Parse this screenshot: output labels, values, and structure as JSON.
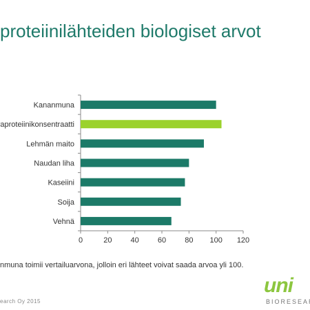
{
  "slide": {
    "title": "proteiinilähteiden biologiset arvot",
    "footnote": "nmuna toimii vertailuarvona, jolloin eri lähteet voivat saada arvoa yli 100.",
    "copyright": "earch Oy 2015",
    "logo_word": "uni",
    "logo_sub": "BIORESEARCH"
  },
  "colors": {
    "bar": "#1c7a68",
    "highlight": "#9bd22c",
    "axis": "#8a8a8a",
    "title": "#1f7a6a"
  },
  "chart_data": {
    "type": "bar",
    "orientation": "horizontal",
    "categories": [
      "Kananmuna",
      "raproteiinikonsentraatti",
      "Lehmän maito",
      "Naudan liha",
      "Kaseiini",
      "Soija",
      "Vehnä"
    ],
    "values": [
      100,
      104,
      91,
      80,
      77,
      74,
      67
    ],
    "highlight_index": 1,
    "xlim": [
      0,
      120
    ],
    "xticks": [
      0,
      20,
      40,
      60,
      80,
      100,
      120
    ],
    "grid": false,
    "legend": "none"
  }
}
